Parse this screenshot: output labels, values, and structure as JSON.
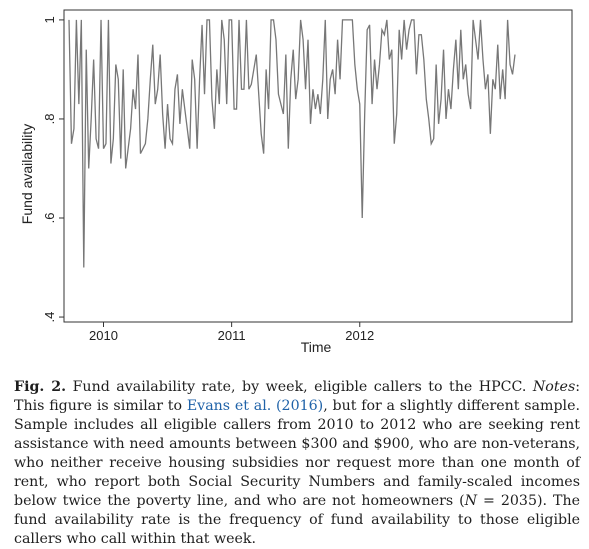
{
  "chart_data": {
    "type": "line",
    "title": "",
    "xlabel": "Time",
    "ylabel": "Fund availability",
    "x_tick_labels": [
      "2010",
      "2011",
      "2012"
    ],
    "y_tick_labels": [
      ".4",
      ".6",
      ".8",
      "1"
    ],
    "y_ticks": [
      0.4,
      0.6,
      0.8,
      1.0
    ],
    "ylim": [
      0.39,
      1.02
    ],
    "x_tick_week_index": [
      14,
      66,
      118
    ],
    "grid": false,
    "series": [
      {
        "name": "Fund availability rate (weekly)",
        "values": [
          1.0,
          0.75,
          0.78,
          1.0,
          0.83,
          1.0,
          0.5,
          0.94,
          0.7,
          0.8,
          0.92,
          0.76,
          0.74,
          1.0,
          0.74,
          0.75,
          1.0,
          0.71,
          0.76,
          0.91,
          0.88,
          0.72,
          0.9,
          0.7,
          0.74,
          0.78,
          0.86,
          0.82,
          0.93,
          0.73,
          0.74,
          0.75,
          0.8,
          0.88,
          0.95,
          0.83,
          0.86,
          0.93,
          0.81,
          0.74,
          0.83,
          0.76,
          0.75,
          0.86,
          0.89,
          0.79,
          0.86,
          0.82,
          0.78,
          0.74,
          0.92,
          0.88,
          0.74,
          0.88,
          0.99,
          0.85,
          1.0,
          1.0,
          0.84,
          0.78,
          0.9,
          0.83,
          1.0,
          0.96,
          0.83,
          1.0,
          1.0,
          0.82,
          0.82,
          1.0,
          0.86,
          0.86,
          1.0,
          0.86,
          0.87,
          0.9,
          0.93,
          0.85,
          0.77,
          0.73,
          0.9,
          0.82,
          1.0,
          1.0,
          0.96,
          0.85,
          0.83,
          0.81,
          0.93,
          0.74,
          0.88,
          0.94,
          0.84,
          0.88,
          1.0,
          0.96,
          0.86,
          0.96,
          0.79,
          0.86,
          0.82,
          0.85,
          0.81,
          0.88,
          1.0,
          0.8,
          0.88,
          0.9,
          0.85,
          0.96,
          0.88,
          1.0,
          1.0,
          1.0,
          1.0,
          1.0,
          0.91,
          0.86,
          0.83,
          0.6,
          0.81,
          0.98,
          0.99,
          0.83,
          0.92,
          0.86,
          0.91,
          0.98,
          0.97,
          1.0,
          0.92,
          0.94,
          0.75,
          0.81,
          0.98,
          0.92,
          1.0,
          0.94,
          0.98,
          1.0,
          1.0,
          0.89,
          0.97,
          0.97,
          0.92,
          0.84,
          0.8,
          0.75,
          0.76,
          0.91,
          0.79,
          0.84,
          0.94,
          0.8,
          0.86,
          0.82,
          0.9,
          0.96,
          0.86,
          0.98,
          0.88,
          0.91,
          0.85,
          0.82,
          1.0,
          0.96,
          0.92,
          1.0,
          0.92,
          0.86,
          0.89,
          0.77,
          0.88,
          0.86,
          0.95,
          0.84,
          0.9,
          0.84,
          1.0,
          0.91,
          0.89,
          0.93
        ]
      }
    ]
  },
  "caption": {
    "label": "Fig. 2.",
    "title_text": " Fund availability rate, by week, eligible callers to the HPCC. ",
    "notes_label": "Notes",
    "text_before_citation": ": This figure is similar to ",
    "citation": "Evans et al. (2016)",
    "text_after_citation": ", but for a slightly different sample. Sample includes all eligible callers from 2010 to 2012 who are seeking rent assistance with need amounts between $300 and $900, who are non-veterans, who neither receive housing subsidies nor request more than one month of rent, who report both Social Security Numbers and family-scaled incomes below twice the poverty line, and who are not homeowners (",
    "n_expression": "N = 2035",
    "text_end": "). The fund availability rate is the frequency of fund availability to those eligible callers who call within that week."
  }
}
